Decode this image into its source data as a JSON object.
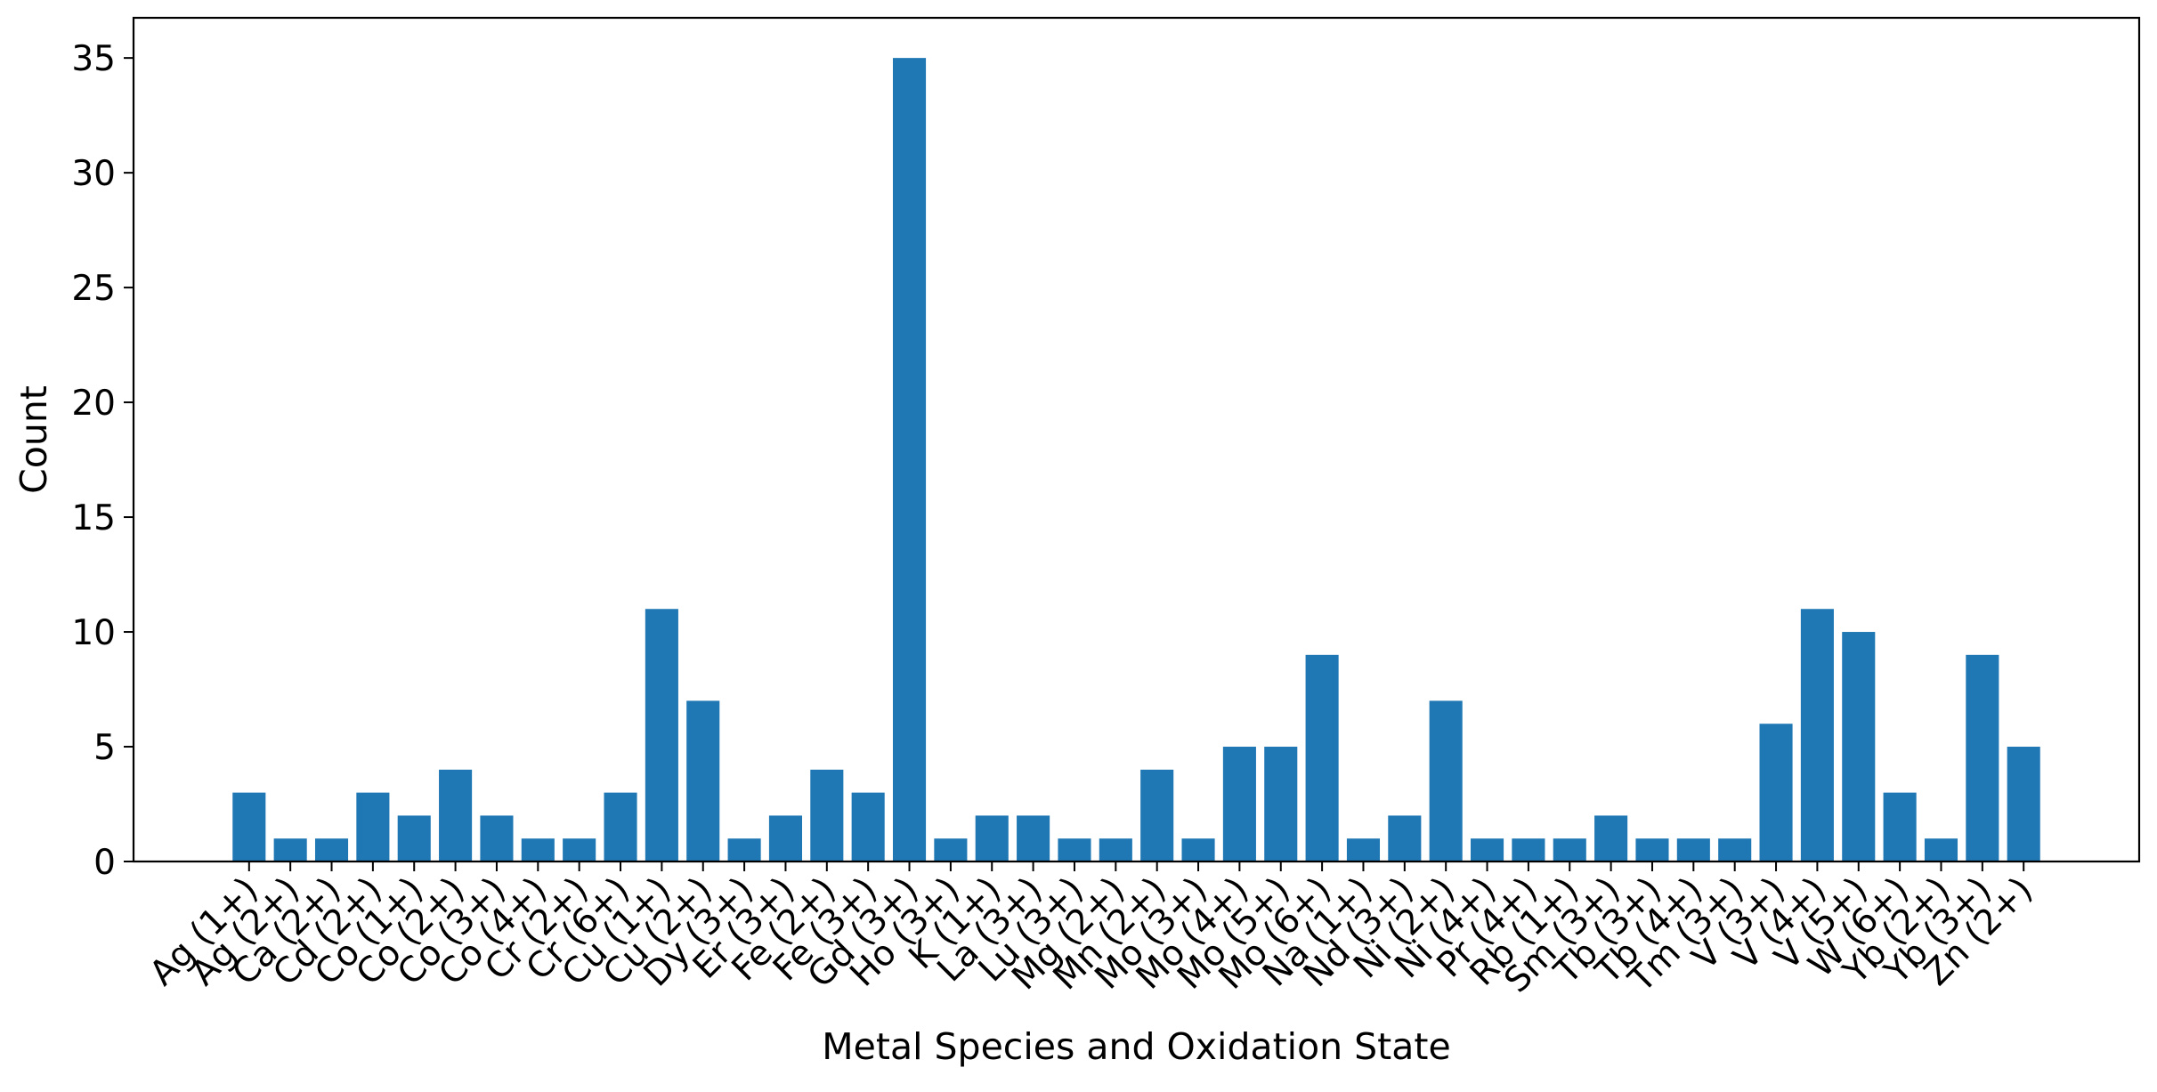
{
  "chart_data": {
    "type": "bar",
    "title": "",
    "xlabel": "Metal Species and Oxidation State",
    "ylabel": "Count",
    "ylim": [
      0,
      36.75
    ],
    "yticks": [
      0,
      5,
      10,
      15,
      20,
      25,
      30,
      35
    ],
    "grid": false,
    "legend": "none",
    "bar_color": "#1f77b4",
    "categories": [
      "Ag (1+)",
      "Ag (2+)",
      "Ca (2+)",
      "Cd (2+)",
      "Co (1+)",
      "Co (2+)",
      "Co (3+)",
      "Co (4+)",
      "Cr (2+)",
      "Cr (6+)",
      "Cu (1+)",
      "Cu (2+)",
      "Dy (3+)",
      "Er (3+)",
      "Fe (2+)",
      "Fe (3+)",
      "Gd (3+)",
      "Ho (3+)",
      "K (1+)",
      "La (3+)",
      "Lu (3+)",
      "Mg (2+)",
      "Mn (2+)",
      "Mo (3+)",
      "Mo (4+)",
      "Mo (5+)",
      "Mo (6+)",
      "Na (1+)",
      "Nd (3+)",
      "Ni (2+)",
      "Ni (4+)",
      "Pr (4+)",
      "Rb (1+)",
      "Sm (3+)",
      "Tb (3+)",
      "Tb (4+)",
      "Tm (3+)",
      "V (3+)",
      "V (4+)",
      "V (5+)",
      "W (6+)",
      "Yb (2+)",
      "Yb (3+)",
      "Zn (2+)"
    ],
    "values": [
      3,
      1,
      1,
      3,
      2,
      4,
      2,
      1,
      1,
      3,
      11,
      7,
      1,
      2,
      4,
      3,
      35,
      1,
      2,
      2,
      1,
      1,
      4,
      1,
      5,
      5,
      9,
      1,
      2,
      7,
      1,
      1,
      1,
      2,
      1,
      1,
      1,
      6,
      11,
      10,
      3,
      1,
      9,
      5
    ]
  }
}
